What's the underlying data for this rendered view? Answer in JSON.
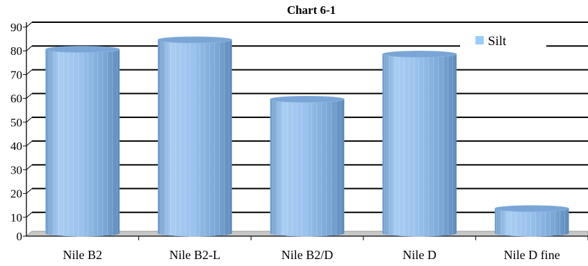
{
  "chart_data": {
    "type": "bar",
    "title": "Chart 6-1",
    "categories": [
      "Nile B2",
      "Nile B2-L",
      "Nile B2/D",
      "Nile D",
      "Nile D fine"
    ],
    "series": [
      {
        "name": "Silt",
        "values": [
          78,
          82,
          57,
          76,
          11
        ]
      }
    ],
    "xlabel": "",
    "ylabel": "",
    "ylim": [
      0,
      90
    ],
    "yticks": [
      0,
      10,
      20,
      30,
      40,
      50,
      60,
      70,
      80,
      90
    ],
    "grid": true,
    "legend": "top-right",
    "bar_style": "3d-cylinder",
    "colors": {
      "bar": "#9cc3ee",
      "bar_dark": "#5d8ab8",
      "bar_top": "#7aa5d6",
      "floor": "#c8c8c8",
      "legend_swatch": "#99ccff"
    }
  }
}
